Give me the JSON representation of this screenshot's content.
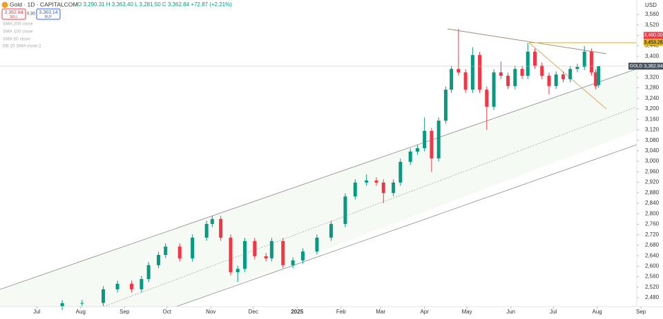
{
  "toolbar": {
    "symbol": "Gold · 1D · CAPITALCOM",
    "ohlc": "O 3,290.31 H 3,363.40 L 3,281.50 C 3,362.84 +72.87 (+2.21%)",
    "sell_price": "3,362.84",
    "sell": "SELL",
    "spread": "0.30",
    "buy_price": "3,363.14",
    "buy": "BUY",
    "indicators": [
      "SMA 200 close",
      "SMA 100 close",
      "SMA 50 close",
      "BB 20 SMA close 2"
    ],
    "currency": "USD"
  },
  "chart_data": {
    "type": "candlestick",
    "up_color": "#089981",
    "down_color": "#f23645",
    "xlim": [
      -26,
      424
    ],
    "ylim": [
      2446,
      3615
    ],
    "xticks": [
      {
        "value": 0,
        "label": "Jul"
      },
      {
        "value": 31,
        "label": "Aug"
      },
      {
        "value": 62,
        "label": "Sep"
      },
      {
        "value": 92,
        "label": "Oct"
      },
      {
        "value": 123,
        "label": "Nov"
      },
      {
        "value": 153,
        "label": "Dec"
      },
      {
        "value": 184,
        "label": "2025"
      },
      {
        "value": 215,
        "label": "Feb"
      },
      {
        "value": 243,
        "label": "Mar"
      },
      {
        "value": 274,
        "label": "Apr"
      },
      {
        "value": 304,
        "label": "May"
      },
      {
        "value": 335,
        "label": "Jun"
      },
      {
        "value": 365,
        "label": "Jul"
      },
      {
        "value": 396,
        "label": "Aug"
      },
      {
        "value": 427,
        "label": "Sep"
      }
    ],
    "yticks": [
      {
        "value": 2480,
        "label": "2,480"
      },
      {
        "value": 2520,
        "label": "2,520"
      },
      {
        "value": 2560,
        "label": "2,560"
      },
      {
        "value": 2600,
        "label": "2,600"
      },
      {
        "value": 2640,
        "label": "2,640"
      },
      {
        "value": 2680,
        "label": "2,680"
      },
      {
        "value": 2720,
        "label": "2,720"
      },
      {
        "value": 2760,
        "label": "2,760"
      },
      {
        "value": 2800,
        "label": "2,800"
      },
      {
        "value": 2840,
        "label": "2,840"
      },
      {
        "value": 2880,
        "label": "2,880"
      },
      {
        "value": 2920,
        "label": "2,920"
      },
      {
        "value": 2960,
        "label": "2,960"
      },
      {
        "value": 3000,
        "label": "3,000"
      },
      {
        "value": 3040,
        "label": "3,040"
      },
      {
        "value": 3080,
        "label": "3,080"
      },
      {
        "value": 3120,
        "label": "3,120"
      },
      {
        "value": 3160,
        "label": "3,160"
      },
      {
        "value": 3200,
        "label": "3,200"
      },
      {
        "value": 3240,
        "label": "3,240"
      },
      {
        "value": 3280,
        "label": "3,280"
      },
      {
        "value": 3320,
        "label": "3,320"
      },
      {
        "value": 3360,
        "label": "3,360"
      },
      {
        "value": 3400,
        "label": "3,400"
      },
      {
        "value": 3440,
        "label": "3,440"
      },
      {
        "value": 3480,
        "label": "3,480"
      },
      {
        "value": 3520,
        "label": "3,520"
      },
      {
        "value": 3560,
        "label": "3,560"
      }
    ],
    "x": [
      18,
      32,
      47,
      57,
      67,
      74,
      79,
      86,
      91,
      101,
      110,
      120,
      124,
      130,
      137,
      142,
      147,
      154,
      162,
      166,
      174,
      181,
      188,
      198,
      208,
      218,
      225,
      233,
      240,
      245,
      252,
      257,
      264,
      269,
      274,
      279,
      284,
      289,
      293,
      298,
      303,
      308,
      313,
      318,
      323,
      328,
      333,
      338,
      343,
      347,
      352,
      357,
      362,
      367,
      372,
      377,
      382,
      387,
      392,
      395,
      397
    ],
    "open": [
      2445,
      2459,
      2460,
      2512,
      2533,
      2512,
      2551,
      2604,
      2643,
      2675,
      2630,
      2709,
      2761,
      2780,
      2709,
      2577,
      2590,
      2696,
      2638,
      2630,
      2696,
      2604,
      2622,
      2656,
      2709,
      2761,
      2866,
      2919,
      2927,
      2919,
      2879,
      2919,
      2998,
      3037,
      3050,
      3116,
      3011,
      3155,
      3273,
      3352,
      3339,
      3273,
      3405,
      3273,
      3208,
      3339,
      3326,
      3287,
      3352,
      3326,
      3418,
      3365,
      3326,
      3287,
      3331,
      3313,
      3352,
      3360,
      3418,
      3339,
      3290.31
    ],
    "high": [
      2471,
      2472,
      2524,
      2545,
      2545,
      2563,
      2616,
      2655,
      2687,
      2687,
      2721,
      2773,
      2792,
      2792,
      2721,
      2602,
      2708,
      2708,
      2650,
      2708,
      2708,
      2634,
      2668,
      2721,
      2773,
      2878,
      2931,
      2950,
      2939,
      2931,
      2931,
      3010,
      3049,
      3062,
      3167,
      3128,
      3167,
      3285,
      3364,
      3505,
      3351,
      3435,
      3417,
      3285,
      3351,
      3380,
      3338,
      3364,
      3364,
      3452,
      3430,
      3377,
      3338,
      3343,
      3343,
      3364,
      3372,
      3439,
      3430,
      3351,
      3363.4
    ],
    "low": [
      2433,
      2447,
      2448,
      2500,
      2500,
      2500,
      2539,
      2592,
      2631,
      2618,
      2618,
      2697,
      2749,
      2697,
      2565,
      2540,
      2578,
      2626,
      2618,
      2618,
      2592,
      2592,
      2610,
      2644,
      2697,
      2749,
      2854,
      2907,
      2907,
      2840,
      2867,
      2907,
      2986,
      3025,
      3038,
      2960,
      2999,
      3143,
      3261,
      3327,
      3261,
      3261,
      3261,
      3120,
      3196,
      3314,
      3275,
      3275,
      3314,
      3314,
      3353,
      3314,
      3255,
      3275,
      3301,
      3301,
      3340,
      3348,
      3327,
      3275,
      3281.5
    ],
    "close": [
      2459,
      2460,
      2512,
      2533,
      2512,
      2551,
      2604,
      2643,
      2675,
      2630,
      2709,
      2761,
      2780,
      2709,
      2577,
      2590,
      2696,
      2638,
      2630,
      2696,
      2604,
      2622,
      2656,
      2709,
      2761,
      2866,
      2919,
      2927,
      2919,
      2879,
      2919,
      2998,
      3037,
      3050,
      3116,
      3011,
      3155,
      3273,
      3352,
      3339,
      3273,
      3405,
      3273,
      3208,
      3339,
      3326,
      3287,
      3352,
      3326,
      3418,
      3365,
      3326,
      3287,
      3331,
      3313,
      3352,
      3360,
      3418,
      3339,
      3287,
      3362.84
    ],
    "price_lines": [
      {
        "value": 3480,
        "label": "3,480.00",
        "color": "#f23645"
      },
      {
        "value": 3453.28,
        "label": "3,453.28",
        "color": "#d9b21f"
      },
      {
        "value": 3362.84,
        "label": "3,362.84",
        "color": "#4a5560",
        "name": "GOLD"
      }
    ]
  }
}
